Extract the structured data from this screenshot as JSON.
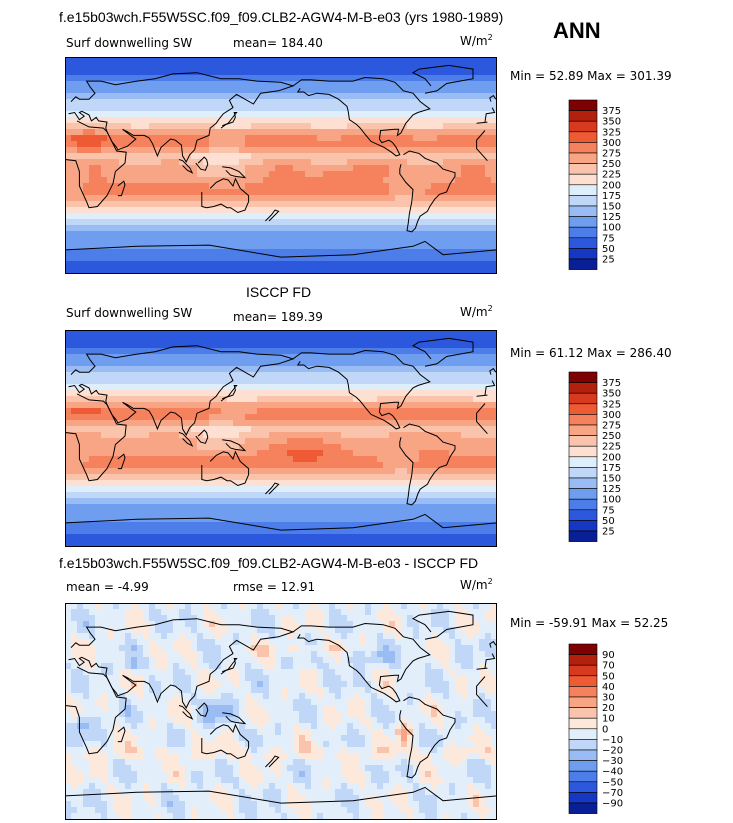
{
  "header": {
    "main_title": "f.e15b03wch.F55W5SC.f09_f09.CLB2-AGW4-M-B-e03 (yrs 1980-1989)",
    "season": "ANN"
  },
  "colors": {
    "land_outline": "#000000",
    "frame": "#000000"
  },
  "panels": [
    {
      "id": "model",
      "heading": "",
      "left_label": "Surf downwelling SW",
      "stat_label": "mean= 184.40",
      "units_base": "W/m",
      "units_exp": "2",
      "minmax": "Min =  52.89 Max = 301.39",
      "colorbar_levels": [
        "375",
        "350",
        "325",
        "300",
        "275",
        "250",
        "225",
        "200",
        "175",
        "150",
        "125",
        "100",
        "75",
        "50",
        "25"
      ],
      "colorbar_colors": [
        "#7f0000",
        "#b3200e",
        "#d83a1f",
        "#ee5a33",
        "#f5825c",
        "#f8a586",
        "#fac4ac",
        "#fde0d2",
        "#dfeefb",
        "#c0d7f8",
        "#98bcf3",
        "#6f9def",
        "#4c7de9",
        "#2c58dd",
        "#1637c4",
        "#0a1f96"
      ]
    },
    {
      "id": "obs",
      "heading": "ISCCP FD",
      "left_label": "Surf downwelling SW",
      "stat_label": "mean=  189.39",
      "units_base": "W/m",
      "units_exp": "2",
      "minmax": "Min =  61.12 Max = 286.40",
      "colorbar_levels": [
        "375",
        "350",
        "325",
        "300",
        "275",
        "250",
        "225",
        "200",
        "175",
        "150",
        "125",
        "100",
        "75",
        "50",
        "25"
      ],
      "colorbar_colors": [
        "#7f0000",
        "#b3200e",
        "#d83a1f",
        "#ee5a33",
        "#f5825c",
        "#f8a586",
        "#fac4ac",
        "#fde0d2",
        "#dfeefb",
        "#c0d7f8",
        "#98bcf3",
        "#6f9def",
        "#4c7de9",
        "#2c58dd",
        "#1637c4",
        "#0a1f96"
      ]
    },
    {
      "id": "diff",
      "heading": "f.e15b03wch.F55W5SC.f09_f09.CLB2-AGW4-M-B-e03 - ISCCP FD",
      "left_label": "mean =  -4.99",
      "stat_label": "rmse =  12.91",
      "units_base": "W/m",
      "units_exp": "2",
      "minmax": "Min = -59.91 Max =  52.25",
      "colorbar_levels": [
        "90",
        "70",
        "50",
        "40",
        "30",
        "20",
        "10",
        "0",
        "−10",
        "−20",
        "−30",
        "−40",
        "−50",
        "−70",
        "−90"
      ],
      "colorbar_colors": [
        "#7f0000",
        "#b3200e",
        "#d83a1f",
        "#ee5a33",
        "#f5825c",
        "#f8a586",
        "#fac4ac",
        "#fde8dc",
        "#e2effb",
        "#c0d7f8",
        "#98bcf3",
        "#6f9def",
        "#4c7de9",
        "#2c58dd",
        "#1637c4",
        "#0a1f96"
      ]
    }
  ],
  "chart_data": [
    {
      "type": "heatmap",
      "title": "",
      "variable": "Surf downwelling SW",
      "mean": 184.4,
      "min": 52.89,
      "max": 301.39,
      "contour_levels": [
        25,
        50,
        75,
        100,
        125,
        150,
        175,
        200,
        225,
        250,
        275,
        300,
        325,
        350,
        375
      ]
    },
    {
      "type": "heatmap",
      "title": "ISCCP FD",
      "variable": "Surf downwelling SW",
      "mean": 189.39,
      "min": 61.12,
      "max": 286.4,
      "contour_levels": [
        25,
        50,
        75,
        100,
        125,
        150,
        175,
        200,
        225,
        250,
        275,
        300,
        325,
        350,
        375
      ]
    },
    {
      "type": "heatmap",
      "title": "f.e15b03wch.F55W5SC.f09_f09.CLB2-AGW4-M-B-e03 - ISCCP FD",
      "variable": "",
      "mean": -4.99,
      "rmse": 12.91,
      "min": -59.91,
      "max": 52.25,
      "contour_levels": [
        -90,
        -70,
        -50,
        -40,
        -30,
        -20,
        -10,
        0,
        10,
        20,
        30,
        40,
        50,
        70,
        90
      ]
    }
  ]
}
